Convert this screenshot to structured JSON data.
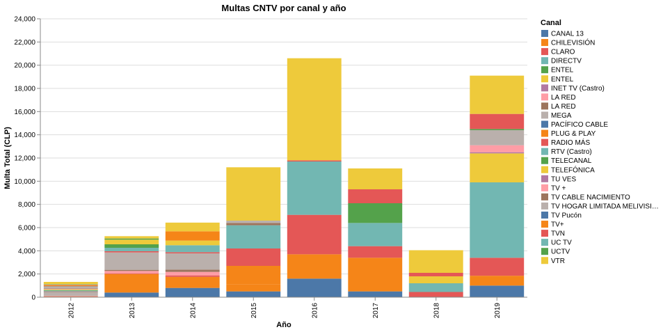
{
  "chart_data": {
    "type": "bar",
    "stacked": true,
    "title": "Multas CNTV por canal y año",
    "xlabel": "Año",
    "ylabel": "Multa Total (CLP)",
    "ylim": [
      0,
      24000
    ],
    "yticks": [
      "0",
      "2,000",
      "4,000",
      "6,000",
      "8,000",
      "10,000",
      "12,000",
      "14,000",
      "16,000",
      "18,000",
      "20,000",
      "22,000",
      "24,000"
    ],
    "grid": true,
    "legend_title": "Canal",
    "legend_position": "right",
    "categories": [
      "2012",
      "2013",
      "2014",
      "2015",
      "2016",
      "2017",
      "2018",
      "2019"
    ],
    "series": [
      {
        "name": "CANAL 13",
        "color": "#4c78a8",
        "values": [
          30,
          400,
          800,
          500,
          1600,
          500,
          0,
          1000
        ]
      },
      {
        "name": "CHILEVISIÓN",
        "color": "#f58518",
        "values": [
          20,
          1600,
          950,
          600,
          2100,
          2900,
          0,
          850
        ]
      },
      {
        "name": "CLARO",
        "color": "#e45756",
        "values": [
          10,
          60,
          130,
          0,
          0,
          0,
          0,
          1550
        ]
      },
      {
        "name": "DIRECTV",
        "color": "#72b7b2",
        "values": [
          0,
          0,
          0,
          0,
          0,
          0,
          0,
          6500
        ]
      },
      {
        "name": "ENTEL",
        "color": "#54a24b",
        "values": [
          0,
          0,
          0,
          0,
          0,
          0,
          0,
          0
        ]
      },
      {
        "name": "ENTEL",
        "color": "#eeca3b",
        "values": [
          0,
          0,
          0,
          0,
          0,
          0,
          0,
          2500
        ]
      },
      {
        "name": "INET TV (Castro)",
        "color": "#b279a2",
        "values": [
          0,
          0,
          0,
          0,
          0,
          0,
          0,
          100
        ]
      },
      {
        "name": "LA RED",
        "color": "#ff9da6",
        "values": [
          40,
          200,
          300,
          0,
          0,
          0,
          0,
          600
        ]
      },
      {
        "name": "LA RED",
        "color": "#9d755d",
        "values": [
          30,
          100,
          200,
          0,
          0,
          0,
          0,
          0
        ]
      },
      {
        "name": "MEGA",
        "color": "#bab0ac",
        "values": [
          300,
          1500,
          1400,
          0,
          0,
          0,
          0,
          1300
        ]
      },
      {
        "name": "PACÍFICO CABLE",
        "color": "#4c78a8",
        "values": [
          20,
          0,
          0,
          0,
          0,
          0,
          0,
          0
        ]
      },
      {
        "name": "PLUG & PLAY",
        "color": "#f58518",
        "values": [
          20,
          0,
          0,
          1600,
          0,
          0,
          0,
          0
        ]
      },
      {
        "name": "RADIO MÁS",
        "color": "#e45756",
        "values": [
          30,
          100,
          100,
          1500,
          3400,
          1000,
          450,
          0
        ]
      },
      {
        "name": "RTV (Castro)",
        "color": "#72b7b2",
        "values": [
          80,
          300,
          600,
          2000,
          4600,
          2000,
          750,
          0
        ]
      },
      {
        "name": "TELECANAL",
        "color": "#54a24b",
        "values": [
          40,
          300,
          0,
          0,
          0,
          1700,
          0,
          100
        ]
      },
      {
        "name": "TELEFÓNICA",
        "color": "#eeca3b",
        "values": [
          60,
          400,
          400,
          0,
          0,
          0,
          600,
          0
        ]
      },
      {
        "name": "TU VES",
        "color": "#b279a2",
        "values": [
          0,
          0,
          0,
          0,
          0,
          0,
          0,
          0
        ]
      },
      {
        "name": "TV +",
        "color": "#ff9da6",
        "values": [
          40,
          0,
          0,
          0,
          0,
          0,
          0,
          0
        ]
      },
      {
        "name": "TV CABLE NACIMIENTO",
        "color": "#9d755d",
        "values": [
          40,
          0,
          0,
          200,
          0,
          0,
          0,
          0
        ]
      },
      {
        "name": "TV HOGAR LIMITADA MELIVISI…",
        "color": "#bab0ac",
        "values": [
          150,
          0,
          0,
          200,
          0,
          0,
          0,
          0
        ]
      },
      {
        "name": "TV Pucón",
        "color": "#4c78a8",
        "values": [
          30,
          0,
          0,
          0,
          0,
          0,
          0,
          0
        ]
      },
      {
        "name": "TV+",
        "color": "#f58518",
        "values": [
          100,
          0,
          800,
          0,
          0,
          0,
          0,
          0
        ]
      },
      {
        "name": "TVN",
        "color": "#e45756",
        "values": [
          30,
          0,
          0,
          0,
          100,
          1200,
          300,
          1300
        ]
      },
      {
        "name": "UC TV",
        "color": "#72b7b2",
        "values": [
          20,
          0,
          0,
          0,
          0,
          0,
          0,
          0
        ]
      },
      {
        "name": "UCTV",
        "color": "#54a24b",
        "values": [
          30,
          100,
          0,
          0,
          0,
          0,
          0,
          0
        ]
      },
      {
        "name": "VTR",
        "color": "#eeca3b",
        "values": [
          200,
          200,
          750,
          4600,
          8800,
          1800,
          1950,
          3300
        ]
      }
    ]
  }
}
